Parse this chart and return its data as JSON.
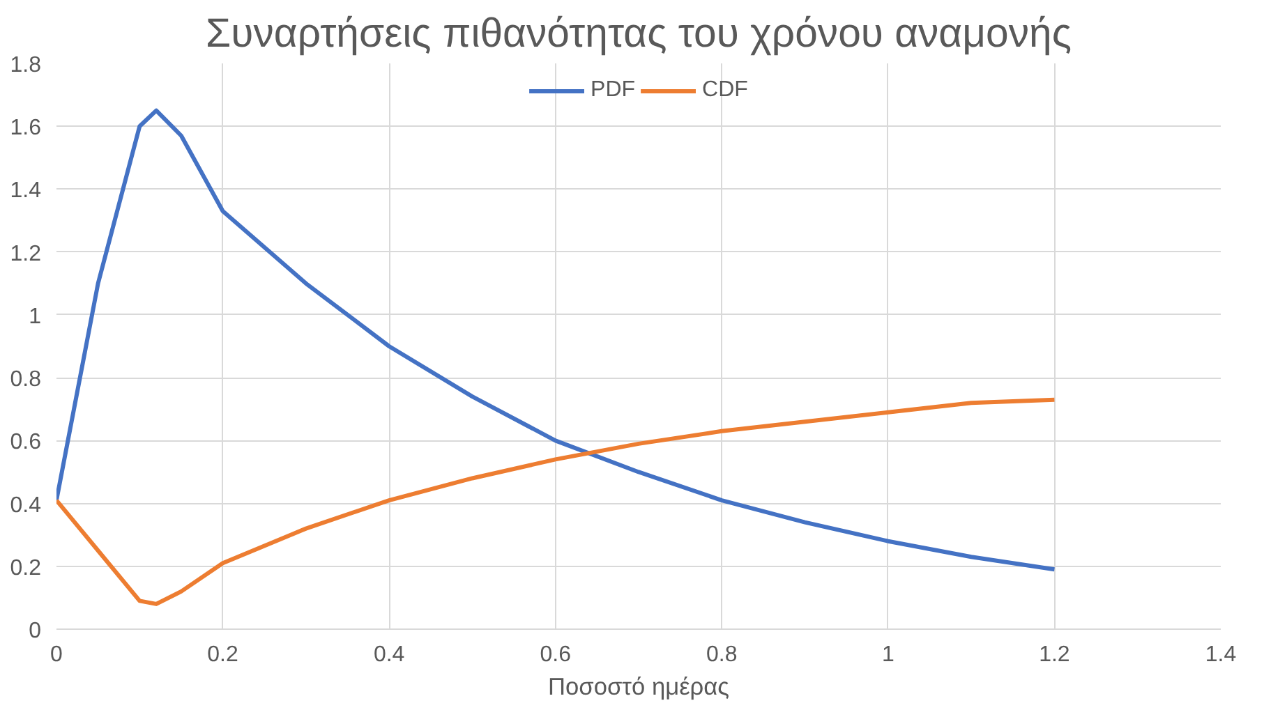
{
  "chart_data": {
    "type": "line",
    "title": "Συναρτήσεις πιθανότητας του χρόνου αναμονής",
    "xlabel": "Ποσοστό ημέρας",
    "x": [
      0,
      0.05,
      0.1,
      0.12,
      0.15,
      0.2,
      0.3,
      0.4,
      0.5,
      0.6,
      0.7,
      0.8,
      0.9,
      1.0,
      1.1,
      1.2
    ],
    "series": [
      {
        "name": "PDF",
        "color": "#4472c4",
        "values": [
          0.41,
          1.1,
          1.6,
          1.65,
          1.57,
          1.33,
          1.1,
          0.9,
          0.74,
          0.6,
          0.5,
          0.41,
          0.34,
          0.28,
          0.23,
          0.19
        ]
      },
      {
        "name": "CDF",
        "color": "#ed7d31",
        "values": [
          0.41,
          0.25,
          0.09,
          0.08,
          0.12,
          0.21,
          0.32,
          0.41,
          0.48,
          0.54,
          0.59,
          0.63,
          0.66,
          0.69,
          0.72,
          0.73
        ]
      }
    ],
    "xlim": [
      0,
      1.4
    ],
    "xticks": [
      0,
      0.2,
      0.4,
      0.6,
      0.8,
      1,
      1.2,
      1.4
    ],
    "ylim": [
      0,
      1.8
    ],
    "yticks": [
      0,
      0.2,
      0.4,
      0.6,
      0.8,
      1,
      1.2,
      1.4,
      1.6,
      1.8
    ],
    "grid": true,
    "legend": "top",
    "marker": "none",
    "line_style": "solid"
  }
}
